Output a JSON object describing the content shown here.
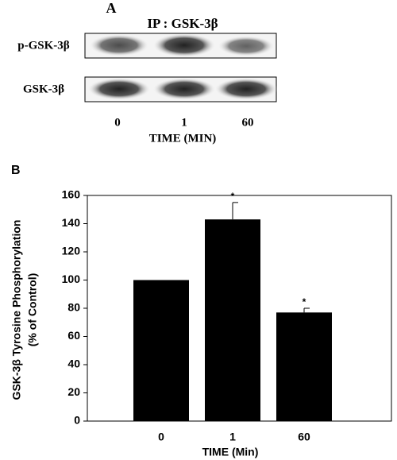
{
  "panel_a": {
    "label": "A",
    "title": "IP : GSK-3β",
    "rows": [
      "p-GSK-3β",
      "GSK-3β"
    ],
    "lanes": [
      "0",
      "1",
      "60"
    ],
    "xlabel": "TIME (MIN)"
  },
  "chart_data": {
    "type": "bar",
    "panel_label": "B",
    "ylabel": [
      "GSK-3β Tyrosine Phosphorylation",
      "(% of Control)"
    ],
    "xlabel": "TIME (Min)",
    "categories": [
      "0",
      "1",
      "60"
    ],
    "values": [
      100,
      143,
      77
    ],
    "errors": [
      0,
      12,
      3
    ],
    "value_annotations": [
      null,
      "*",
      "*"
    ],
    "color": "#000000",
    "ylim": [
      0,
      160
    ],
    "yticks": [
      0,
      20,
      40,
      60,
      80,
      100,
      120,
      140,
      160
    ]
  }
}
